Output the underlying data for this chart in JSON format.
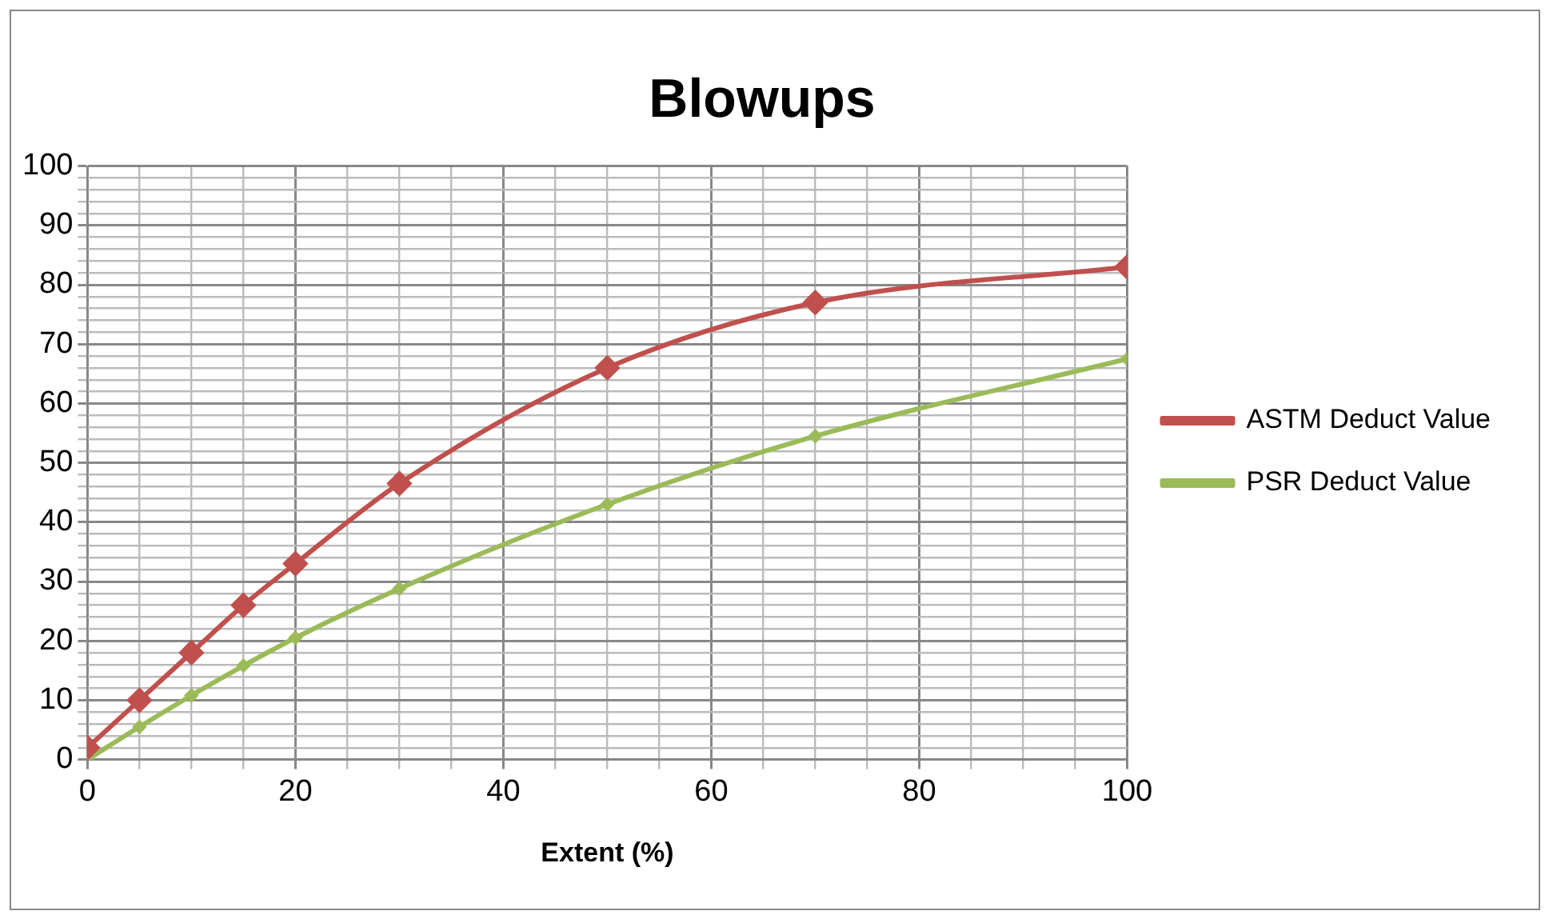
{
  "chart_data": {
    "type": "line",
    "title": "Blowups",
    "xlabel": "Extent (%)",
    "x": [
      0,
      5,
      10,
      15,
      20,
      30,
      50,
      70,
      100
    ],
    "series": [
      {
        "name": "ASTM Deduct Value",
        "color": "#c0504d",
        "marker": "diamond",
        "values": [
          2,
          10,
          18,
          26,
          33,
          46.5,
          66,
          77,
          83
        ]
      },
      {
        "name": "PSR Deduct Value",
        "color": "#9bbb59",
        "marker": "diamond",
        "values": [
          0,
          5.5,
          10.8,
          15.8,
          20.5,
          28.8,
          43,
          54.5,
          67.5
        ]
      }
    ],
    "xlim": [
      0,
      100
    ],
    "xticks": [
      0,
      {
        "value": 5,
        "label": null
      },
      {
        "value": 10,
        "label": null
      },
      {
        "value": 15,
        "label": null
      },
      20,
      {
        "value": 25,
        "label": null
      },
      {
        "value": 30,
        "label": null
      },
      {
        "value": 35,
        "label": null
      },
      40,
      {
        "value": 45,
        "label": null
      },
      {
        "value": 50,
        "label": null
      },
      {
        "value": 55,
        "label": null
      },
      60,
      {
        "value": 65,
        "label": null
      },
      {
        "value": 70,
        "label": null
      },
      {
        "value": 75,
        "label": null
      },
      80,
      {
        "value": 85,
        "label": null
      },
      {
        "value": 90,
        "label": null
      },
      {
        "value": 95,
        "label": null
      },
      100
    ],
    "ylim": [
      0,
      100
    ],
    "yticks": [
      0,
      {
        "value": 2,
        "label": null
      },
      {
        "value": 4,
        "label": null
      },
      {
        "value": 6,
        "label": null
      },
      {
        "value": 8,
        "label": null
      },
      10,
      {
        "value": 12,
        "label": null
      },
      {
        "value": 14,
        "label": null
      },
      {
        "value": 16,
        "label": null
      },
      {
        "value": 18,
        "label": null
      },
      20,
      {
        "value": 22,
        "label": null
      },
      {
        "value": 24,
        "label": null
      },
      {
        "value": 26,
        "label": null
      },
      {
        "value": 28,
        "label": null
      },
      30,
      {
        "value": 32,
        "label": null
      },
      {
        "value": 34,
        "label": null
      },
      {
        "value": 36,
        "label": null
      },
      {
        "value": 38,
        "label": null
      },
      40,
      {
        "value": 42,
        "label": null
      },
      {
        "value": 44,
        "label": null
      },
      {
        "value": 46,
        "label": null
      },
      {
        "value": 48,
        "label": null
      },
      50,
      {
        "value": 52,
        "label": null
      },
      {
        "value": 54,
        "label": null
      },
      {
        "value": 56,
        "label": null
      },
      {
        "value": 58,
        "label": null
      },
      60,
      {
        "value": 62,
        "label": null
      },
      {
        "value": 64,
        "label": null
      },
      {
        "value": 66,
        "label": null
      },
      {
        "value": 68,
        "label": null
      },
      70,
      {
        "value": 72,
        "label": null
      },
      {
        "value": 74,
        "label": null
      },
      {
        "value": 76,
        "label": null
      },
      {
        "value": 78,
        "label": null
      },
      80,
      {
        "value": 82,
        "label": null
      },
      {
        "value": 84,
        "label": null
      },
      {
        "value": 86,
        "label": null
      },
      {
        "value": 88,
        "label": null
      },
      90,
      {
        "value": 92,
        "label": null
      },
      {
        "value": 94,
        "label": null
      },
      {
        "value": 96,
        "label": null
      },
      {
        "value": 98,
        "label": null
      },
      100
    ],
    "grid": true,
    "legend": "right",
    "line_style": "solid"
  }
}
